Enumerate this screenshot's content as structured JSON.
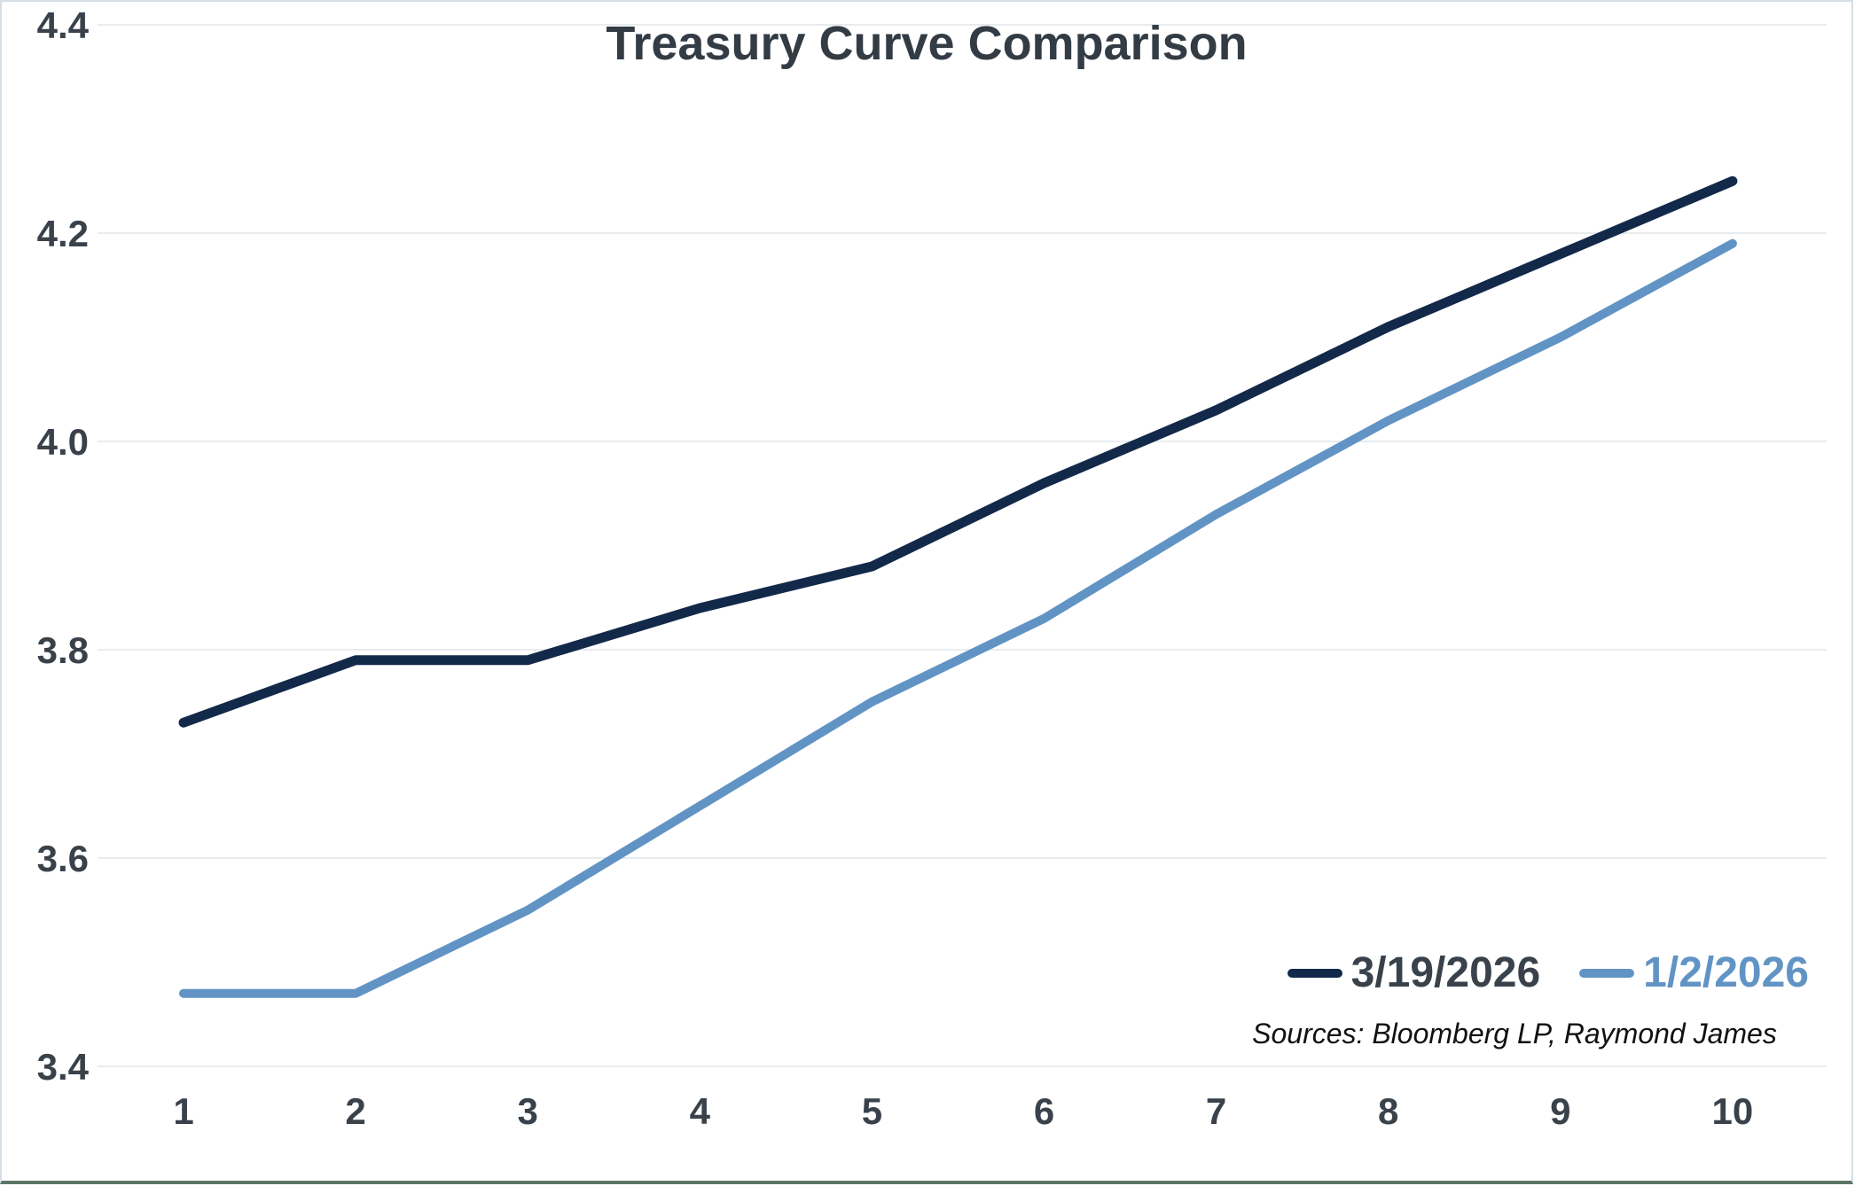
{
  "header": {
    "title": "Treasury Curve Comparison"
  },
  "legend": {
    "items": [
      {
        "label": "3/19/2026",
        "swatch_color": "#12294a",
        "text_color": "#39424b"
      },
      {
        "label": "1/2/2026",
        "swatch_color": "#6194c4",
        "text_color": "#6194c4"
      }
    ]
  },
  "footer": {
    "source_note": "Sources: Bloomberg LP, Raymond James"
  },
  "chart_data": {
    "type": "line",
    "title": "Treasury Curve Comparison",
    "x": [
      1,
      2,
      3,
      4,
      5,
      6,
      7,
      8,
      9,
      10
    ],
    "xtick_labels": [
      "1",
      "2",
      "3",
      "4",
      "5",
      "6",
      "7",
      "8",
      "9",
      "10"
    ],
    "series": [
      {
        "name": "3/19/2026",
        "color": "#12294a",
        "values": [
          3.73,
          3.79,
          3.79,
          3.84,
          3.88,
          3.96,
          4.03,
          4.11,
          4.18,
          4.25
        ]
      },
      {
        "name": "1/2/2026",
        "color": "#6194c4",
        "values": [
          3.47,
          3.47,
          3.55,
          3.65,
          3.75,
          3.83,
          3.93,
          4.02,
          4.1,
          4.19
        ]
      }
    ],
    "ylim": [
      3.4,
      4.4
    ],
    "yticks": [
      3.4,
      3.6,
      3.8,
      4.0,
      4.2,
      4.4
    ],
    "ytick_labels": [
      "3.4",
      "3.6",
      "3.8",
      "4.0",
      "4.2",
      "4.4"
    ],
    "grid": true,
    "legend_position": "inside-lower-right",
    "gridline_color": "#e8ecef",
    "axis_label_color": "#39424b",
    "source_note": "Sources: Bloomberg LP, Raymond James"
  }
}
